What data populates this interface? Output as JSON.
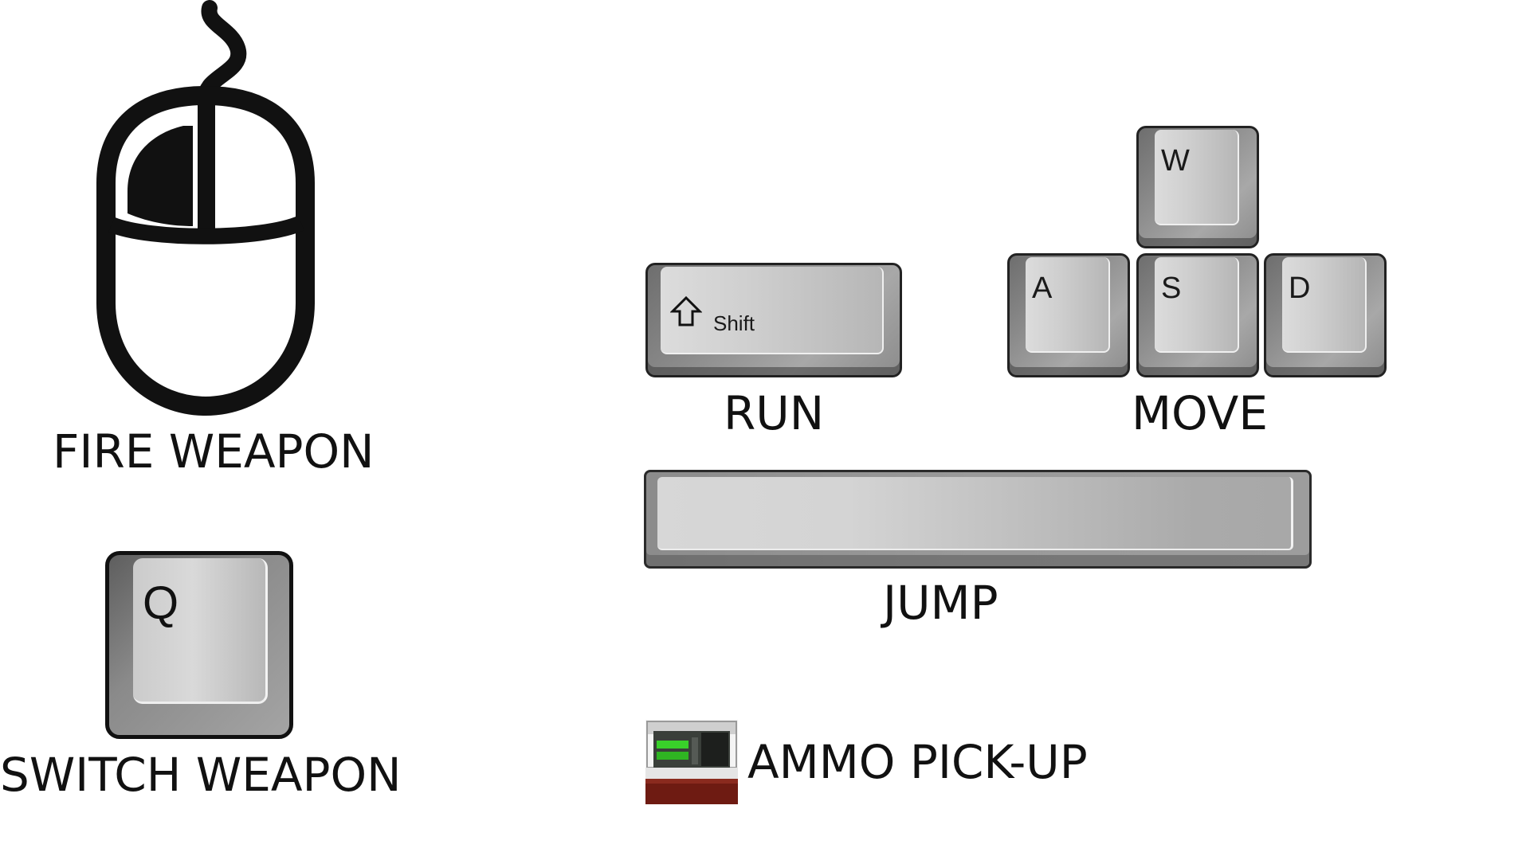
{
  "controls": {
    "fire": {
      "caption": "FIRE WEAPON",
      "icon": "mouse-left-click-icon"
    },
    "switch": {
      "caption": "SWITCH WEAPON",
      "key": "Q"
    },
    "run": {
      "caption": "RUN",
      "key": "Shift",
      "icon": "shift-arrow-icon"
    },
    "move": {
      "caption": "MOVE",
      "keys": {
        "up": "W",
        "left": "A",
        "down": "S",
        "right": "D"
      }
    },
    "jump": {
      "caption": "JUMP"
    },
    "ammo": {
      "caption": "AMMO PICK-UP",
      "icon": "ammo-crate-icon"
    }
  },
  "colors": {
    "background": "#ffffff",
    "text": "#111111",
    "key_light": "#d8d8d8",
    "key_dark": "#8a8a8a",
    "ammo_green": "#39d12a",
    "ammo_base": "#6e1b12"
  }
}
